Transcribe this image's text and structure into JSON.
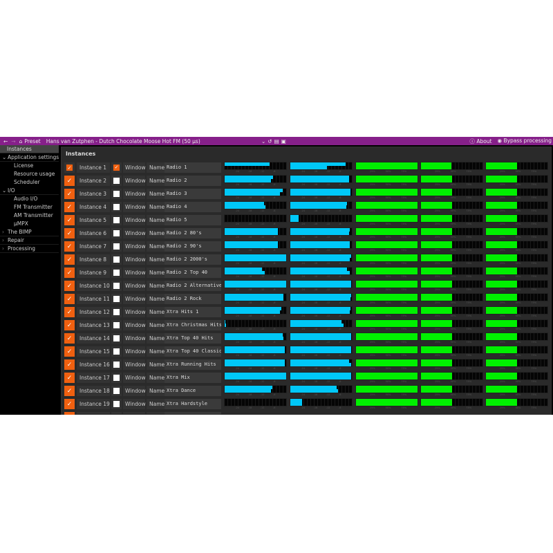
{
  "topbar": {
    "back_icon": "arrow-left",
    "forward_icon": "arrow-right",
    "home_icon": "home",
    "preset_label": "Preset",
    "preset_title": "Hans van Zutphen - Dutch Chocolate Moose Hot FM (50 µs)",
    "about_label": "About",
    "bypass_label": "Bypass processing",
    "color": "#86208a"
  },
  "sidebar": {
    "items": [
      {
        "label": "Instances",
        "type": "selected"
      },
      {
        "label": "Application settings",
        "type": "group",
        "expanded": true
      },
      {
        "label": "License",
        "type": "sub"
      },
      {
        "label": "Resource usage",
        "type": "sub"
      },
      {
        "label": "Scheduler",
        "type": "sub"
      },
      {
        "label": "I/O",
        "type": "group",
        "expanded": true
      },
      {
        "label": "Audio I/O",
        "type": "sub"
      },
      {
        "label": "FM Transmitter",
        "type": "sub"
      },
      {
        "label": "AM Transmitter",
        "type": "sub"
      },
      {
        "label": "µMPX",
        "type": "sub"
      },
      {
        "label": "The BIMP",
        "type": "group",
        "expanded": false
      },
      {
        "label": "Repair",
        "type": "group",
        "expanded": false
      },
      {
        "label": "Processing",
        "type": "group",
        "expanded": false
      }
    ]
  },
  "main": {
    "title": "Instances",
    "window_label": "Window",
    "name_label": "Name",
    "db_ticks": [
      "-24",
      "-18",
      "-12",
      "-6"
    ],
    "pct_ticks": [
      "25%",
      "50%",
      "75%"
    ],
    "colors": {
      "accent": "#f06010",
      "level": "#00c8f8",
      "load": "#00f000"
    },
    "instances": [
      {
        "label": "Instance 1",
        "enabled": true,
        "window": true,
        "name": "Radio 1",
        "in": [
          0.73,
          0
        ],
        "out": [
          0.9,
          0.6
        ],
        "load": [
          1,
          0.49,
          0.5
        ]
      },
      {
        "label": "Instance 2",
        "enabled": true,
        "window": false,
        "name": "Radio 2",
        "in": [
          0.79,
          0.75
        ],
        "out": [
          0.95,
          0.96
        ],
        "load": [
          1,
          0.5,
          0.5
        ]
      },
      {
        "label": "Instance 3",
        "enabled": true,
        "window": false,
        "name": "Radio 3",
        "in": [
          0.94,
          0.9
        ],
        "out": [
          0.98,
          0.98
        ],
        "load": [
          1,
          0.5,
          0.5
        ]
      },
      {
        "label": "Instance 4",
        "enabled": true,
        "window": false,
        "name": "Radio 4",
        "in": [
          0.64,
          0.66
        ],
        "out": [
          0.92,
          0.91
        ],
        "load": [
          1,
          0.5,
          0.5
        ]
      },
      {
        "label": "Instance 5",
        "enabled": true,
        "window": false,
        "name": "Radio 5",
        "in": [
          0,
          0
        ],
        "out": [
          0.14,
          0.14
        ],
        "load": [
          1,
          0.5,
          0.5
        ]
      },
      {
        "label": "Instance 6",
        "enabled": true,
        "window": false,
        "name": "Radio 2 80's",
        "in": [
          0.87,
          0.86
        ],
        "out": [
          0.97,
          0.96
        ],
        "load": [
          1,
          0.5,
          0.5
        ]
      },
      {
        "label": "Instance 7",
        "enabled": true,
        "window": false,
        "name": "Radio 2 90's",
        "in": [
          0.87,
          0.86
        ],
        "out": [
          0.97,
          0.97
        ],
        "load": [
          1,
          0.5,
          0.5
        ]
      },
      {
        "label": "Instance 8",
        "enabled": true,
        "window": false,
        "name": "Radio 2 2000's",
        "in": [
          1,
          1
        ],
        "out": [
          0.99,
          0.97
        ],
        "load": [
          1,
          0.5,
          0.5
        ]
      },
      {
        "label": "Instance 9",
        "enabled": true,
        "window": false,
        "name": "Radio 2 Top 40",
        "in": [
          0.61,
          0.65
        ],
        "out": [
          0.92,
          0.97
        ],
        "load": [
          1,
          0.5,
          0.5
        ]
      },
      {
        "label": "Instance 10",
        "enabled": true,
        "window": false,
        "name": "Radio 2 Alternative",
        "in": [
          1,
          1
        ],
        "out": [
          0.99,
          0.99
        ],
        "load": [
          1,
          0.5,
          0.5
        ]
      },
      {
        "label": "Instance 11",
        "enabled": true,
        "window": false,
        "name": "Radio 2 Rock",
        "in": [
          0.96,
          0.96
        ],
        "out": [
          0.99,
          0.98
        ],
        "load": [
          1,
          0.5,
          0.5
        ]
      },
      {
        "label": "Instance 12",
        "enabled": true,
        "window": false,
        "name": "Xtra Hits 1",
        "in": [
          0.92,
          0.9
        ],
        "out": [
          0.98,
          0.97
        ],
        "load": [
          1,
          0.5,
          0.5
        ]
      },
      {
        "label": "Instance 13",
        "enabled": true,
        "window": false,
        "name": "Xtra Christmas Hits",
        "in": [
          0.01,
          0.02
        ],
        "out": [
          0.83,
          0.86
        ],
        "load": [
          1,
          0.5,
          0.5
        ]
      },
      {
        "label": "Instance 14",
        "enabled": true,
        "window": false,
        "name": "Xtra Top 40 Hits",
        "in": [
          0.94,
          0.96
        ],
        "out": [
          0.99,
          0.99
        ],
        "load": [
          1,
          0.5,
          0.5
        ]
      },
      {
        "label": "Instance 15",
        "enabled": true,
        "window": false,
        "name": "Xtra Top 40 Classic",
        "in": [
          0.98,
          0.98
        ],
        "out": [
          0.99,
          0.99
        ],
        "load": [
          1,
          0.5,
          0.5
        ]
      },
      {
        "label": "Instance 16",
        "enabled": true,
        "window": false,
        "name": "Xtra Running Hits",
        "in": [
          0.98,
          0.98
        ],
        "out": [
          0.96,
          0.99
        ],
        "load": [
          1,
          0.5,
          0.5
        ]
      },
      {
        "label": "Instance 17",
        "enabled": true,
        "window": false,
        "name": "Xtra Mix",
        "in": [
          1,
          1
        ],
        "out": [
          0.99,
          0.99
        ],
        "load": [
          1,
          0.5,
          0.5
        ]
      },
      {
        "label": "Instance 18",
        "enabled": true,
        "window": false,
        "name": "Xtra Dance",
        "in": [
          0.77,
          0.75
        ],
        "out": [
          0.75,
          0.77
        ],
        "load": [
          1,
          0.5,
          0.5
        ]
      },
      {
        "label": "Instance 19",
        "enabled": true,
        "window": false,
        "name": "Xtra Hardstyle",
        "in": [
          0,
          0
        ],
        "out": [
          0.19,
          0.19
        ],
        "load": [
          1,
          0.5,
          0.5
        ]
      }
    ]
  }
}
